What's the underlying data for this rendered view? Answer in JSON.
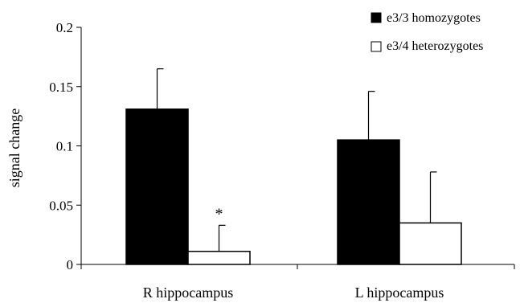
{
  "chart_data": {
    "type": "bar",
    "categories": [
      "R hippocampus",
      "L hippocampus"
    ],
    "series": [
      {
        "name": "e3/3 homozygotes",
        "values": [
          0.131,
          0.105
        ],
        "errors": [
          0.034,
          0.041
        ],
        "color": "#000000"
      },
      {
        "name": "e3/4 heterozygotes",
        "values": [
          0.011,
          0.035
        ],
        "errors": [
          0.022,
          0.043
        ],
        "color": "#ffffff"
      }
    ],
    "xlabel": "",
    "ylabel": "signal change",
    "ylim": [
      0,
      0.2
    ],
    "yticks": [
      "0",
      "0.05",
      "0.1",
      "0.15",
      "0.2"
    ],
    "grid": false,
    "legend_position": "top-right",
    "annotations": [
      {
        "text": "*",
        "category": 0,
        "series": 1
      }
    ]
  }
}
